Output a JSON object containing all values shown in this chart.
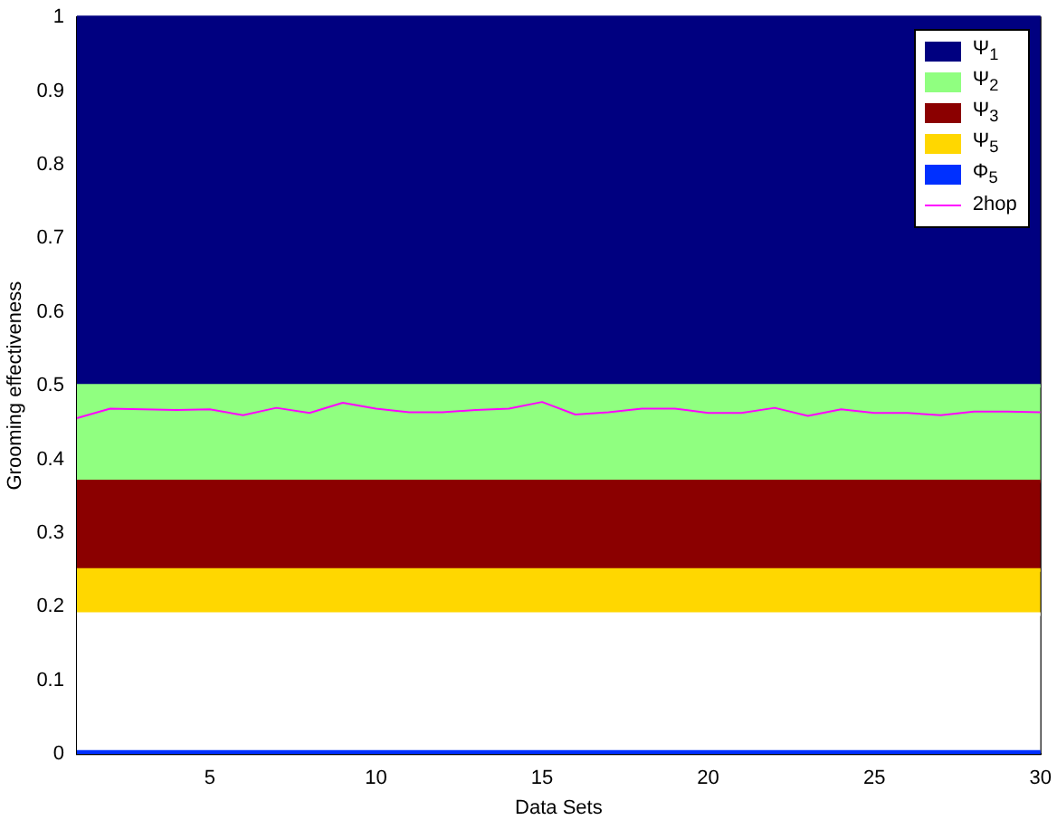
{
  "chart_data": {
    "type": "area",
    "xlabel": "Data Sets",
    "ylabel": "Grooming effectiveness",
    "x": [
      1,
      2,
      3,
      4,
      5,
      6,
      7,
      8,
      9,
      10,
      11,
      12,
      13,
      14,
      15,
      16,
      17,
      18,
      19,
      20,
      21,
      22,
      23,
      24,
      25,
      26,
      27,
      28,
      29,
      30
    ],
    "xlim": [
      1,
      30
    ],
    "xticks": [
      5,
      10,
      15,
      20,
      25,
      30
    ],
    "ylim": [
      0,
      1
    ],
    "yticks": [
      0,
      0.1,
      0.2,
      0.3,
      0.4,
      0.5,
      0.6,
      0.7,
      0.8,
      0.9,
      1
    ],
    "legend": "top right",
    "grid": false,
    "series": [
      {
        "name": "Ψ$_{1}$",
        "color": "#000080",
        "values": [
          1,
          1,
          1,
          1,
          1,
          1,
          1,
          1,
          1,
          1,
          1,
          1,
          1,
          1,
          1,
          1,
          1,
          1,
          1,
          1,
          1,
          1,
          1,
          1,
          1,
          1,
          1,
          1,
          1,
          1
        ]
      },
      {
        "name": "Ψ$_{2}$",
        "color": "#90ff80",
        "values": [
          0.5,
          0.5,
          0.5,
          0.5,
          0.5,
          0.5,
          0.5,
          0.5,
          0.5,
          0.5,
          0.5,
          0.5,
          0.5,
          0.5,
          0.5,
          0.5,
          0.5,
          0.5,
          0.5,
          0.5,
          0.5,
          0.5,
          0.5,
          0.5,
          0.5,
          0.5,
          0.5,
          0.5,
          0.5,
          0.5
        ]
      },
      {
        "name": "Ψ$_{3}$",
        "color": "#8b0000",
        "values": [
          0.37,
          0.37,
          0.37,
          0.37,
          0.37,
          0.37,
          0.37,
          0.37,
          0.37,
          0.37,
          0.37,
          0.37,
          0.37,
          0.37,
          0.37,
          0.37,
          0.37,
          0.37,
          0.37,
          0.37,
          0.37,
          0.37,
          0.37,
          0.37,
          0.37,
          0.37,
          0.37,
          0.37,
          0.37,
          0.37
        ]
      },
      {
        "name": "Ψ$_{5}$",
        "color": "#ffd700",
        "values": [
          0.25,
          0.25,
          0.25,
          0.25,
          0.25,
          0.25,
          0.25,
          0.25,
          0.25,
          0.25,
          0.25,
          0.25,
          0.25,
          0.25,
          0.25,
          0.25,
          0.25,
          0.25,
          0.25,
          0.25,
          0.25,
          0.25,
          0.25,
          0.25,
          0.25,
          0.25,
          0.25,
          0.25,
          0.25,
          0.25
        ]
      },
      {
        "color": "#ffffff",
        "values": [
          0.19,
          0.19,
          0.19,
          0.19,
          0.19,
          0.19,
          0.19,
          0.19,
          0.19,
          0.19,
          0.19,
          0.19,
          0.19,
          0.19,
          0.19,
          0.19,
          0.19,
          0.19,
          0.19,
          0.19,
          0.19,
          0.19,
          0.19,
          0.19,
          0.19,
          0.19,
          0.19,
          0.19,
          0.19,
          0.19
        ]
      },
      {
        "name": "Φ$_{5}$",
        "color": "#0030ff",
        "values": [
          0.003,
          0.003,
          0.003,
          0.003,
          0.003,
          0.003,
          0.003,
          0.003,
          0.003,
          0.003,
          0.003,
          0.003,
          0.003,
          0.003,
          0.003,
          0.003,
          0.003,
          0.003,
          0.003,
          0.003,
          0.003,
          0.003,
          0.003,
          0.003,
          0.003,
          0.003,
          0.003,
          0.003,
          0.003,
          0.003
        ]
      },
      {
        "name": "2hop",
        "type": "line",
        "color": "#ff00ff",
        "values": [
          0.456,
          0.469,
          0.468,
          0.467,
          0.468,
          0.46,
          0.47,
          0.463,
          0.477,
          0.469,
          0.464,
          0.464,
          0.467,
          0.469,
          0.478,
          0.461,
          0.464,
          0.469,
          0.469,
          0.463,
          0.463,
          0.47,
          0.459,
          0.468,
          0.463,
          0.463,
          0.46,
          0.465,
          0.465,
          0.464
        ]
      }
    ]
  }
}
